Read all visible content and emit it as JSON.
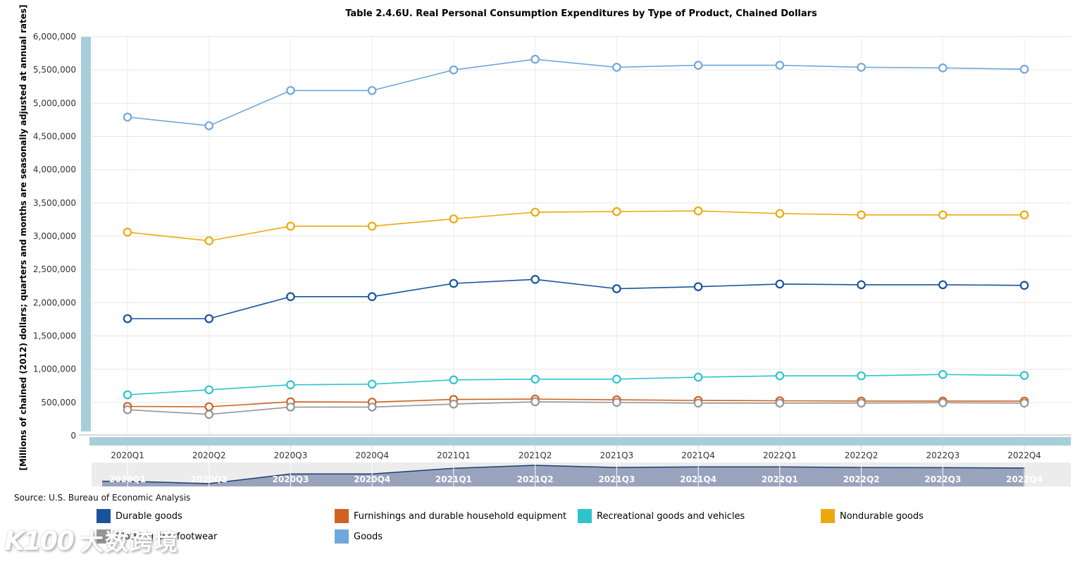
{
  "source": "Source: U.S. Bureau of Economic Analysis",
  "watermark": {
    "logo": "K100",
    "text": "大数跨境"
  },
  "colors": {
    "axis_strip": "#a9cedb",
    "gridline_h": "#e6e6e6",
    "gridline_v": "#ececec",
    "axis_line": "#b3b3b3",
    "axis_text": "#333333",
    "marker_fill": "#ffffff",
    "navigator_track": "#ececec",
    "navigator_fill": "#99a3bd",
    "navigator_line": "#1c3e70",
    "navigator_label": "#ffffff",
    "navigator_separator": "#ffffff"
  },
  "chart_data": {
    "type": "line",
    "title": "Table 2.4.6U. Real Personal Consumption Expenditures by Type of Product, Chained Dollars",
    "ylabel": "[Millions of chained (2012) dollars; quarters and months are seasonally adjusted at annual rates]",
    "xlabel": "",
    "ylim": [
      0,
      6000000
    ],
    "y_tick_step": 500000,
    "y_tick_labels": [
      "0",
      "500,000",
      "1,000,000",
      "1,500,000",
      "2,000,000",
      "2,500,000",
      "3,000,000",
      "3,500,000",
      "4,000,000",
      "4,500,000",
      "5,000,000",
      "5,500,000",
      "6,000,000"
    ],
    "categories": [
      "2020Q1",
      "2020Q2",
      "2020Q3",
      "2020Q4",
      "2021Q1",
      "2021Q2",
      "2021Q3",
      "2021Q4",
      "2022Q1",
      "2022Q2",
      "2022Q3",
      "2022Q4"
    ],
    "grid": true,
    "legend_position": "bottom",
    "marker": "open-circle",
    "series": [
      {
        "name": "Durable goods",
        "color": "#17549c",
        "values": [
          1760000,
          1760000,
          2090000,
          2090000,
          2290000,
          2350000,
          2210000,
          2240000,
          2280000,
          2270000,
          2270000,
          2260000
        ]
      },
      {
        "name": "Furnishings and durable household equipment",
        "color": "#d2611f",
        "values": [
          440000,
          435000,
          510000,
          505000,
          545000,
          550000,
          540000,
          530000,
          525000,
          520000,
          520000,
          520000
        ]
      },
      {
        "name": "Recreational goods and vehicles",
        "color": "#2ec4ce",
        "values": [
          615000,
          690000,
          765000,
          775000,
          840000,
          850000,
          850000,
          880000,
          900000,
          900000,
          920000,
          905000
        ]
      },
      {
        "name": "Nondurable goods",
        "color": "#eca90d",
        "values": [
          3060000,
          2930000,
          3150000,
          3150000,
          3260000,
          3360000,
          3370000,
          3380000,
          3340000,
          3320000,
          3320000,
          3320000
        ]
      },
      {
        "name": "Clothing and footwear",
        "color": "#969696",
        "values": [
          390000,
          320000,
          430000,
          430000,
          475000,
          510000,
          500000,
          490000,
          490000,
          490000,
          495000,
          490000
        ]
      },
      {
        "name": "Goods",
        "color": "#6fa8dc",
        "values": [
          4790000,
          4660000,
          5190000,
          5190000,
          5500000,
          5660000,
          5540000,
          5570000,
          5570000,
          5540000,
          5530000,
          5510000
        ]
      }
    ],
    "navigator": {
      "based_on": "Goods",
      "value_range": [
        4660000,
        5660000
      ]
    }
  }
}
